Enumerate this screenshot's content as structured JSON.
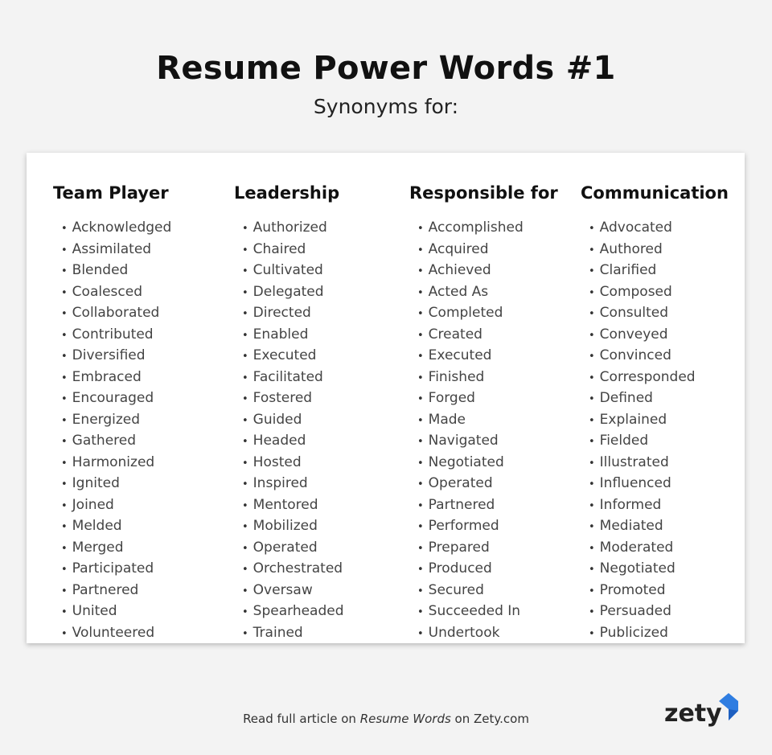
{
  "title": "Resume Power Words #1",
  "subtitle": "Synonyms for:",
  "columns": [
    {
      "heading": "Team Player",
      "items": [
        "Acknowledged",
        "Assimilated",
        "Blended",
        "Coalesced",
        "Collaborated",
        "Contributed",
        "Diversified",
        "Embraced",
        "Encouraged",
        "Energized",
        "Gathered",
        "Harmonized",
        "Ignited",
        "Joined",
        "Melded",
        "Merged",
        "Participated",
        "Partnered",
        "United",
        "Volunteered"
      ]
    },
    {
      "heading": "Leadership",
      "items": [
        "Authorized",
        "Chaired",
        "Cultivated",
        "Delegated",
        "Directed",
        "Enabled",
        "Executed",
        "Facilitated",
        "Fostered",
        "Guided",
        "Headed",
        "Hosted",
        "Inspired",
        "Mentored",
        "Mobilized",
        "Operated",
        "Orchestrated",
        "Oversaw",
        "Spearheaded",
        "Trained"
      ]
    },
    {
      "heading": "Responsible for",
      "items": [
        "Accomplished",
        "Acquired",
        "Achieved",
        "Acted As",
        "Completed",
        "Created",
        "Executed",
        "Finished",
        "Forged",
        "Made",
        "Navigated",
        "Negotiated",
        "Operated",
        "Partnered",
        "Performed",
        "Prepared",
        "Produced",
        "Secured",
        "Succeeded In",
        "Undertook"
      ]
    },
    {
      "heading": "Communication",
      "items": [
        "Advocated",
        "Authored",
        "Clarified",
        "Composed",
        "Consulted",
        "Conveyed",
        "Convinced",
        "Corresponded",
        "Defined",
        "Explained",
        "Fielded",
        "Illustrated",
        "Influenced",
        "Informed",
        "Mediated",
        "Moderated",
        "Negotiated",
        "Promoted",
        "Persuaded",
        "Publicized"
      ]
    }
  ],
  "footer": {
    "prefix": "Read full article on ",
    "link": "Resume Words",
    "suffix": " on Zety.com"
  },
  "logo": {
    "text": "zety",
    "accent": "#2f7de1"
  }
}
